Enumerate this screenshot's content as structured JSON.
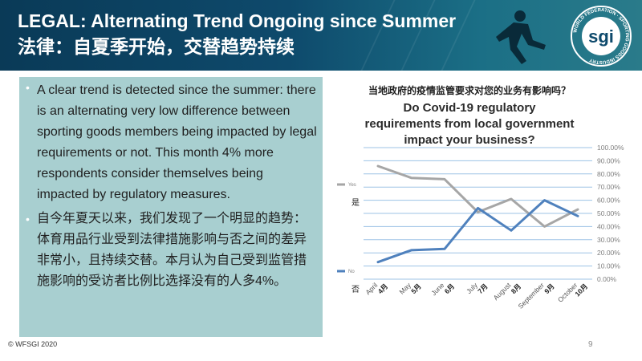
{
  "header": {
    "title_en": "LEGAL: Alternating Trend Ongoing since Summer",
    "title_zh": "法律：自夏季开始，交替趋势持续"
  },
  "logo": {
    "text": "sgi",
    "ring_text": "WORLD FEDERATION · SPORTING GOODS INDUSTRY"
  },
  "body": {
    "bullet_en": "A clear trend is detected since the summer: there is an alternating very low difference between sporting goods members being impacted by legal requirements or not. This month 4% more respondents consider themselves being impacted by regulatory measures.",
    "bullet_zh": "自今年夏天以来，我们发现了一个明显的趋势：体育用品行业受到法律措施影响与否之间的差异非常小，且持续交替。本月认为自己受到监管措施影响的受访者比例比选择没有的人多4%。"
  },
  "footer": {
    "copyright": "© WFSGI 2020",
    "page": "9"
  },
  "colors": {
    "header_bg": "#0e4a6c",
    "textbox_bg": "#a8cfd0",
    "yes_series": "#a6a6a6",
    "no_series": "#4f81bd"
  },
  "chart_data": {
    "type": "line",
    "title_zh": "当地政府的疫情监管要求对您的业务有影响吗？",
    "title_en": "Do Covid-19 regulatory requirements from local government impact your business?",
    "categories": [
      {
        "en": "April",
        "zh": "4月"
      },
      {
        "en": "May",
        "zh": "5月"
      },
      {
        "en": "June",
        "zh": "6月"
      },
      {
        "en": "July",
        "zh": "7月"
      },
      {
        "en": "August",
        "zh": "8月"
      },
      {
        "en": "September",
        "zh": "9月"
      },
      {
        "en": "October",
        "zh": "10月"
      }
    ],
    "series": [
      {
        "name": "Yes",
        "name_zh": "是",
        "color": "#a6a6a6",
        "values": [
          86,
          77,
          76,
          51,
          61,
          40,
          53
        ]
      },
      {
        "name": "No",
        "name_zh": "否",
        "color": "#4f81bd",
        "values": [
          13,
          22,
          23,
          54,
          37,
          60,
          48
        ]
      }
    ],
    "ylim": [
      0,
      100
    ],
    "yticks": [
      "0.00%",
      "10.00%",
      "20.00%",
      "30.00%",
      "40.00%",
      "50.00%",
      "60.00%",
      "70.00%",
      "80.00%",
      "90.00%",
      "100.00%"
    ],
    "grid": true,
    "legend": "left"
  }
}
